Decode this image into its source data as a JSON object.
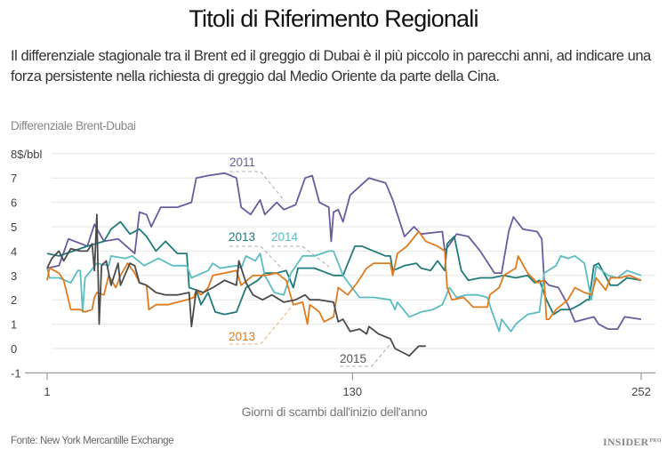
{
  "header": {
    "title": "Titoli di Riferimento Regionali",
    "subtitle": "Il differenziale stagionale tra il Brent ed il greggio di Dubai è il più piccolo in parecchi anni, ad indicare una forza persistente nella richiesta di greggio dal Medio Oriente da parte della Cina.",
    "unit_label": "Differenziale Brent-Dubai"
  },
  "footer": {
    "source": "Fonte: New York Mercantille Exchange",
    "logo": "INSIDER",
    "logo_sup": "PRO"
  },
  "chart_data": {
    "type": "line",
    "title": "Titoli di Riferimento Regionali",
    "xlabel": "Giorni di scambi dall'inizio dell'anno",
    "ylabel": "Differenziale Brent-Dubai",
    "xlim": [
      1,
      252
    ],
    "ylim": [
      -1,
      8
    ],
    "x_ticks": [
      1,
      130,
      252
    ],
    "y_ticks": [
      -1,
      0,
      1,
      2,
      3,
      4,
      5,
      6,
      7,
      8
    ],
    "y_tick_labels": [
      "-1",
      "0",
      "1",
      "2",
      "3",
      "4",
      "5",
      "6",
      "7",
      "8$/bbl"
    ],
    "grid": "horizontal",
    "legend": "none (inline labels)",
    "series": [
      {
        "name": "2011",
        "color": "#6b5b9e",
        "x": [
          1,
          6,
          10,
          18,
          21,
          25,
          31,
          38,
          40,
          43,
          45,
          49,
          56,
          62,
          64,
          69,
          76,
          81,
          83,
          87,
          91,
          93,
          98,
          101,
          106,
          110,
          113,
          116,
          120,
          121,
          122,
          124,
          126,
          129,
          137,
          144,
          147,
          152,
          156,
          159,
          168,
          169,
          172,
          174,
          179,
          184,
          190,
          193,
          196,
          198,
          202,
          208,
          210,
          211,
          213,
          217,
          221,
          224,
          228,
          232,
          234,
          238,
          242,
          245,
          252
        ],
        "y": [
          3.3,
          3.4,
          4.5,
          4.2,
          5.1,
          4.4,
          4.5,
          3.9,
          5.6,
          5.5,
          5.0,
          5.8,
          5.8,
          6.0,
          7.0,
          7.1,
          7.2,
          7.0,
          5.8,
          5.5,
          6.1,
          5.5,
          6.0,
          5.7,
          5.9,
          7.0,
          7.1,
          6.0,
          5.8,
          4.4,
          5.6,
          5.7,
          5.2,
          6.3,
          7.0,
          6.8,
          6.1,
          4.6,
          5.0,
          4.7,
          4.8,
          4.0,
          4.4,
          4.7,
          4.6,
          4.0,
          3.1,
          3.1,
          4.8,
          5.4,
          4.9,
          4.8,
          4.5,
          2.8,
          2.6,
          2.5,
          1.8,
          1.1,
          1.2,
          1.3,
          1.0,
          0.8,
          0.8,
          1.3,
          1.2
        ]
      },
      {
        "name": "2013",
        "color": "#1f7a78",
        "x": [
          1,
          6,
          12,
          18,
          25,
          28,
          32,
          36,
          40,
          43,
          47,
          51,
          56,
          60,
          61,
          64,
          66,
          69,
          72,
          76,
          81,
          85,
          90,
          93,
          98,
          102,
          105,
          107,
          114,
          122,
          126,
          131,
          134,
          139,
          144,
          146,
          147,
          152,
          157,
          159,
          163,
          166,
          169,
          170,
          173,
          176,
          179,
          184,
          189,
          194,
          199,
          204,
          207,
          209,
          212,
          215,
          218,
          222,
          226,
          229,
          230,
          232,
          234,
          239,
          242,
          246,
          252
        ],
        "y": [
          3.9,
          3.8,
          4.0,
          4.2,
          4.4,
          4.9,
          5.2,
          4.7,
          4.9,
          4.6,
          4.0,
          4.4,
          3.9,
          3.9,
          2.5,
          2.4,
          1.8,
          2.3,
          1.5,
          1.4,
          1.5,
          2.5,
          2.8,
          3.1,
          3.1,
          3.2,
          2.5,
          3.3,
          3.3,
          3.0,
          3.0,
          4.2,
          4.2,
          4.0,
          3.8,
          3.8,
          3.2,
          3.4,
          3.5,
          3.3,
          3.2,
          3.6,
          3.2,
          4.3,
          4.6,
          3.2,
          2.8,
          2.9,
          2.9,
          3.0,
          2.9,
          3.0,
          2.7,
          2.8,
          2.0,
          1.4,
          1.6,
          1.6,
          1.8,
          2.0,
          2.0,
          3.4,
          3.5,
          2.6,
          2.6,
          2.9,
          2.8
        ]
      },
      {
        "name": "2014",
        "color": "#5bbcc2",
        "x": [
          1,
          2,
          6,
          11,
          14,
          15,
          16,
          17,
          22,
          27,
          28,
          34,
          37,
          42,
          48,
          54,
          60,
          62,
          69,
          71,
          74,
          81,
          83,
          85,
          89,
          91,
          93,
          97,
          101,
          104,
          109,
          114,
          120,
          122,
          126,
          129,
          133,
          139,
          146,
          148,
          149,
          154,
          159,
          164,
          168,
          171,
          174,
          178,
          183,
          187,
          189,
          192,
          193,
          197,
          199,
          204,
          209,
          211,
          216,
          218,
          221,
          224,
          228,
          231,
          233,
          238,
          242,
          246,
          252
        ],
        "y": [
          3.3,
          2.9,
          2.9,
          2.7,
          3.2,
          3.2,
          1.5,
          2.9,
          3.5,
          3.4,
          3.8,
          3.7,
          3.8,
          3.4,
          3.7,
          3.4,
          3.4,
          2.9,
          3.2,
          3.5,
          3.3,
          3.4,
          3.3,
          3.8,
          3.6,
          3.9,
          3.0,
          2.3,
          2.2,
          3.1,
          3.8,
          3.8,
          4.0,
          4.0,
          3.0,
          2.6,
          2.1,
          2.1,
          2.0,
          1.6,
          1.9,
          1.3,
          1.5,
          1.6,
          1.8,
          2.5,
          2.1,
          2.2,
          2.2,
          2.1,
          1.5,
          0.7,
          1.2,
          0.7,
          1.0,
          1.4,
          1.5,
          3.1,
          3.4,
          3.8,
          3.7,
          3.8,
          3.5,
          2.0,
          3.4,
          3.0,
          2.9,
          3.2,
          3.0
        ]
      },
      {
        "name": "2013",
        "color": "#e07b1f",
        "x": [
          1,
          2,
          6,
          8,
          10,
          11,
          15,
          17,
          20,
          21,
          22,
          25,
          27,
          30,
          32,
          35,
          38,
          40,
          43,
          44,
          47,
          52,
          56,
          60,
          63,
          64,
          66,
          69,
          71,
          76,
          81,
          83,
          88,
          93,
          98,
          102,
          105,
          109,
          111,
          112,
          116,
          118,
          122,
          124,
          128,
          132,
          136,
          139,
          146,
          147,
          149,
          153,
          158,
          161,
          166,
          169,
          170,
          172,
          177,
          181,
          187,
          188,
          192,
          194,
          199,
          200,
          204,
          208,
          211,
          212,
          213,
          216,
          221,
          224,
          228,
          231,
          233,
          237,
          239,
          243,
          247,
          252
        ],
        "y": [
          2.8,
          3.3,
          3.1,
          2.8,
          2.0,
          1.6,
          1.6,
          1.5,
          1.6,
          2.1,
          2.3,
          2.2,
          3.0,
          2.5,
          3.0,
          3.5,
          3.1,
          2.7,
          2.6,
          1.6,
          1.8,
          1.8,
          1.9,
          2.0,
          2.1,
          2.4,
          2.2,
          2.5,
          3.0,
          3.1,
          3.2,
          2.6,
          3.0,
          3.0,
          3.1,
          2.8,
          1.8,
          1.9,
          1.0,
          1.8,
          1.5,
          1.1,
          1.3,
          2.5,
          2.2,
          2.7,
          3.3,
          3.5,
          3.5,
          3.0,
          3.9,
          4.2,
          4.8,
          4.4,
          4.2,
          4.0,
          2.5,
          2.0,
          2.1,
          1.7,
          1.7,
          2.2,
          2.5,
          3.0,
          3.3,
          3.8,
          3.1,
          2.7,
          2.8,
          1.2,
          1.2,
          1.6,
          2.0,
          2.5,
          2.3,
          2.2,
          2.9,
          2.4,
          2.9,
          2.9,
          3.0,
          2.8
        ]
      },
      {
        "name": "2015",
        "color": "#4a4a4a",
        "x": [
          1,
          3,
          6,
          8,
          11,
          15,
          18,
          20,
          21,
          22,
          23,
          24,
          26,
          28,
          31,
          32,
          36,
          38,
          40,
          43,
          47,
          51,
          56,
          61,
          62,
          64,
          67,
          71,
          76,
          81,
          82,
          85,
          88,
          92,
          96,
          101,
          106,
          110,
          112,
          116,
          122,
          124,
          126,
          129,
          133,
          136,
          137,
          141,
          146,
          148,
          152,
          154,
          156,
          158,
          161
        ],
        "y": [
          3.3,
          3.7,
          4.0,
          3.6,
          4.1,
          4.0,
          4.0,
          4.3,
          3.2,
          5.5,
          1.0,
          3.4,
          3.6,
          2.6,
          3.5,
          2.6,
          3.5,
          3.4,
          2.7,
          2.6,
          2.3,
          2.2,
          2.2,
          2.3,
          0.9,
          2.4,
          2.3,
          2.5,
          2.8,
          2.6,
          3.6,
          2.7,
          2.2,
          2.0,
          2.2,
          1.9,
          2.0,
          2.2,
          2.0,
          2.0,
          1.9,
          1.1,
          1.2,
          0.7,
          0.8,
          0.6,
          0.9,
          0.6,
          0.4,
          0.0,
          -0.2,
          -0.3,
          -0.1,
          0.1,
          0.1
        ]
      }
    ],
    "annotations": [
      {
        "text": "2011",
        "series": "2011",
        "color": "#6b5b9e"
      },
      {
        "text": "2013",
        "series": "2013",
        "color": "#1f7a78"
      },
      {
        "text": "2014",
        "series": "2014",
        "color": "#5bbcc2"
      },
      {
        "text": "2013",
        "series": "2013",
        "color": "#e07b1f"
      },
      {
        "text": "2015",
        "series": "2015",
        "color": "#555555"
      }
    ]
  }
}
